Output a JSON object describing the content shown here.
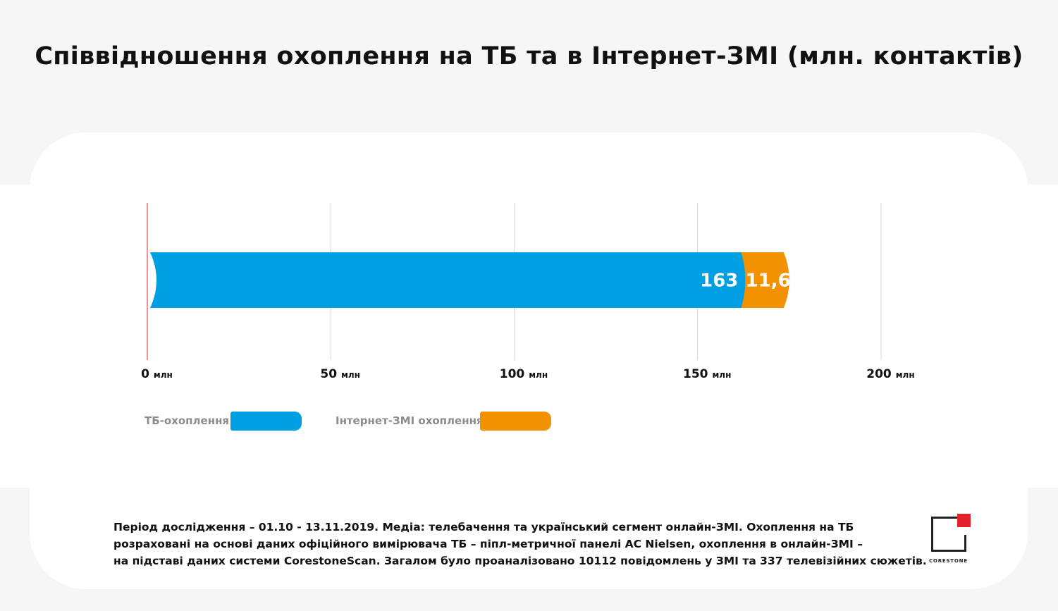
{
  "title": "Співвідношення охоплення на ТБ та в Інтернет-ЗМІ (млн. контактів)",
  "chart_data": {
    "type": "bar",
    "orientation": "horizontal",
    "stacked": true,
    "categories": [
      ""
    ],
    "series": [
      {
        "name": "ТБ-охоплення",
        "values": [
          163
        ],
        "label": "163",
        "color": "#009ee3"
      },
      {
        "name": "Інтернет-ЗМІ охоплення",
        "values": [
          11.6
        ],
        "label": "11,6",
        "color": "#f39200"
      }
    ],
    "xlim": [
      0,
      200
    ],
    "ticks": [
      {
        "value": 0,
        "num": "0",
        "unit": "млн"
      },
      {
        "value": 50,
        "num": "50",
        "unit": "млн"
      },
      {
        "value": 100,
        "num": "100",
        "unit": "млн"
      },
      {
        "value": 150,
        "num": "150",
        "unit": "млн"
      },
      {
        "value": 200,
        "num": "200",
        "unit": "млн"
      }
    ],
    "grid": true,
    "zero_line_color": "#e3222b",
    "legend_placement": "bottom-left"
  },
  "footnote": [
    "Період дослідження – 01.10 - 13.11.2019. Медіа: телебачення та український сегмент онлайн-ЗМІ. Охоплення на ТБ",
    "розраховані на основі даних офіційного вимірювача ТБ – піпл-метричної панелі AC Nielsen, охоплення в онлайн-ЗМІ –",
    "на підставі даних системи CorestoneScan. Загалом було проаналізовано 10112 повідомлень у ЗМІ та 337 телевізійних сюжетів."
  ],
  "logo": {
    "text": "CORESTONE",
    "accent": "#e3222b"
  }
}
